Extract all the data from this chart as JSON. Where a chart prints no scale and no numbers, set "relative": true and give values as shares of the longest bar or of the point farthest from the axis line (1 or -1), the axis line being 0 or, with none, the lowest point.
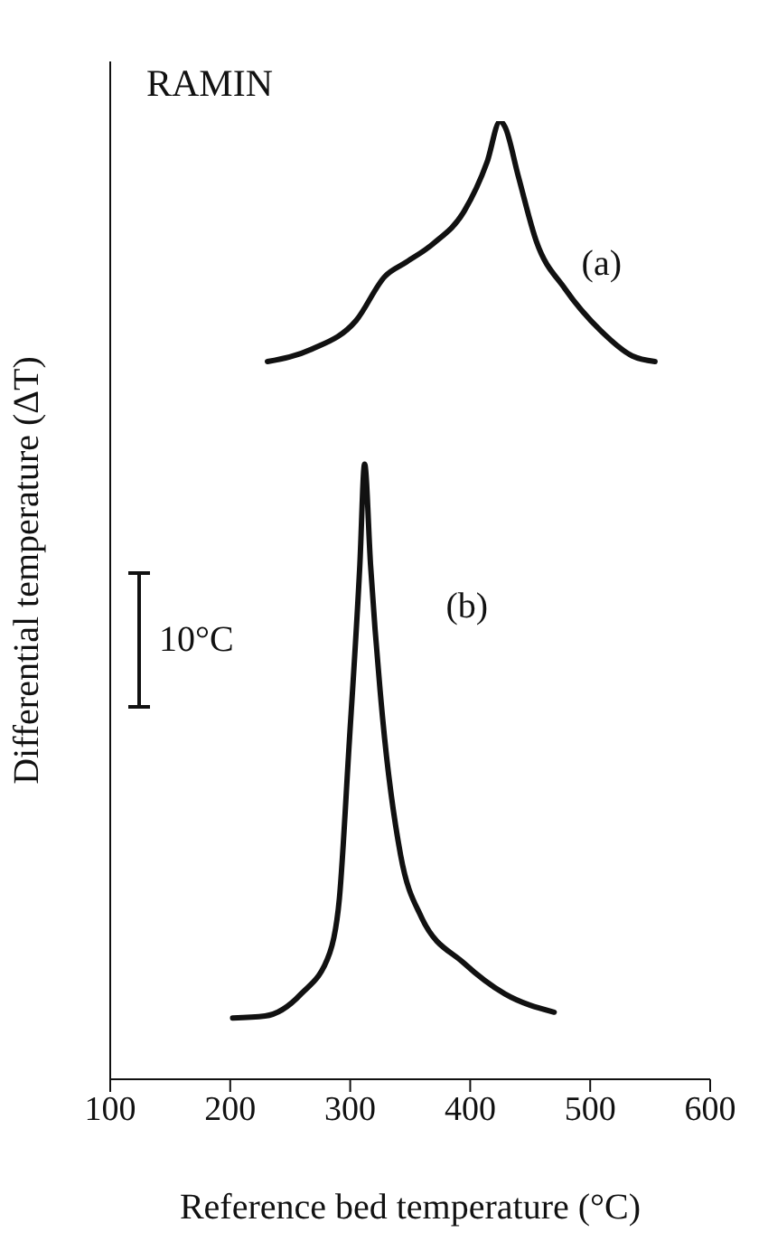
{
  "chart_data": {
    "type": "line",
    "title": "RAMIN",
    "xlabel": "Reference bed temperature (°C)",
    "ylabel": "Differential temperature (ΔT)",
    "relative": true,
    "xlim": [
      100,
      600
    ],
    "xticks": [
      100,
      200,
      300,
      400,
      500,
      600
    ],
    "annotations": [
      "10°C"
    ],
    "marker": "none",
    "line_style": "solid",
    "legend": false,
    "grid": false,
    "series": [
      {
        "name": "(a)",
        "color": "#111111",
        "x": [
          231,
          268,
          305,
          329,
          347,
          369,
          395,
          414,
          425,
          429,
          440,
          455,
          479,
          509,
          535,
          554
        ],
        "values": [
          0.749,
          0.762,
          0.792,
          0.838,
          0.853,
          0.872,
          0.906,
          0.957,
          1,
          0.994,
          0.943,
          0.875,
          0.825,
          0.781,
          0.755,
          0.749
        ]
      },
      {
        "name": "(b)",
        "color": "#111111",
        "x": [
          202,
          229,
          259,
          283,
          291,
          299,
          308,
          312,
          317,
          327,
          342,
          359,
          395,
          429,
          470
        ],
        "values": [
          0.064,
          0.066,
          0.089,
          0.132,
          0.189,
          0.347,
          0.536,
          0.642,
          0.536,
          0.377,
          0.234,
          0.17,
          0.121,
          0.089,
          0.07
        ]
      }
    ]
  }
}
